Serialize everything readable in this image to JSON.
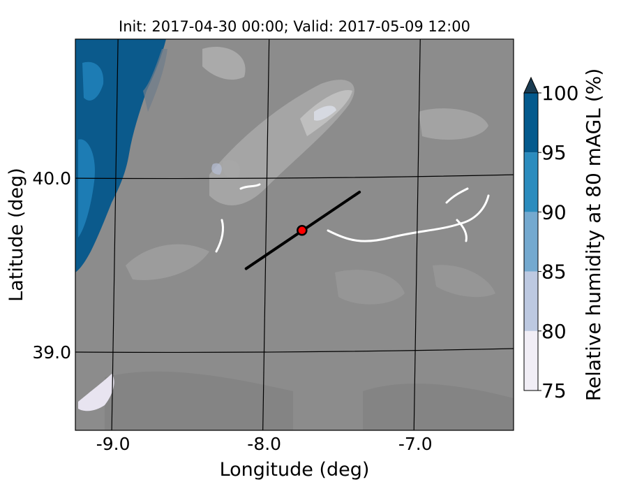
{
  "title": "Init: 2017-04-30 00:00; Valid: 2017-05-09 12:00",
  "map": {
    "xlabel": "Longitude (deg)",
    "ylabel": "Latitude (deg)",
    "lon_range": [
      -9.25,
      -6.35
    ],
    "lat_range": [
      38.55,
      40.8
    ],
    "lon_ticks": [
      {
        "value": -9.0,
        "label": "-9.0"
      },
      {
        "value": -8.0,
        "label": "-8.0"
      },
      {
        "value": -7.0,
        "label": "-7.0"
      }
    ],
    "lat_ticks": [
      {
        "value": 40.0,
        "label": "40.0"
      },
      {
        "value": 39.0,
        "label": "39.0"
      }
    ],
    "background_color": "#8c8c8c",
    "ocean_color": "#0b5a8c",
    "cross_section": {
      "start": [
        -8.12,
        39.48
      ],
      "end": [
        -7.37,
        39.92
      ]
    },
    "marker": {
      "lon": -7.75,
      "lat": 39.7,
      "color": "#ff0000"
    }
  },
  "colorbar": {
    "label": "Relative humidity at 80 mAGL (%)",
    "levels": [
      75,
      80,
      85,
      90,
      95,
      100
    ],
    "tick_labels": [
      "75",
      "80",
      "85",
      "90",
      "95",
      "100"
    ],
    "colors": [
      "#f1eef6",
      "#bdc9e1",
      "#74a9cf",
      "#2b8cbe",
      "#045a8d"
    ],
    "extend": "max"
  }
}
